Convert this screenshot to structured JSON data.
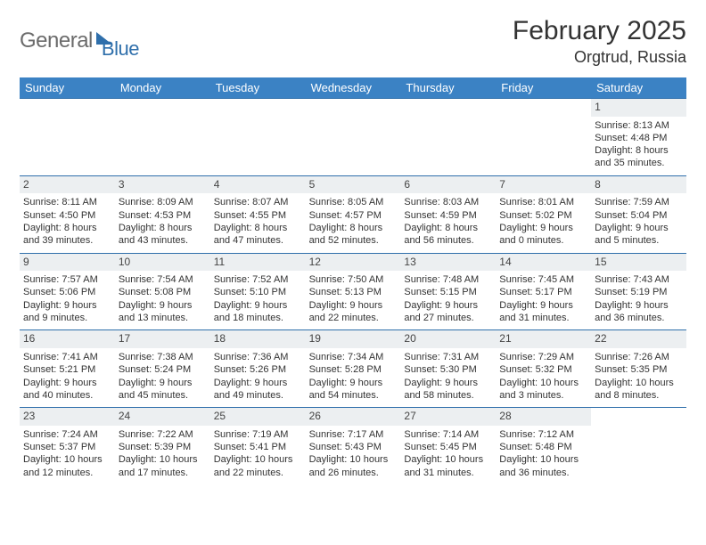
{
  "logo": {
    "general": "General",
    "blue": "Blue"
  },
  "title": "February 2025",
  "location": "Orgtrud, Russia",
  "weekdays": [
    "Sunday",
    "Monday",
    "Tuesday",
    "Wednesday",
    "Thursday",
    "Friday",
    "Saturday"
  ],
  "colors": {
    "header_bg": "#3b82c4",
    "header_text": "#ffffff",
    "daynum_bg": "#eceff1",
    "border": "#2f6fab",
    "logo_gray": "#6b6b6b",
    "logo_blue": "#2f6fab",
    "body_text": "#333333"
  },
  "fonts": {
    "title_size": 30,
    "location_size": 18,
    "weekday_size": 13,
    "cell_size": 11
  },
  "weeks": [
    [
      {
        "n": "",
        "sr": "",
        "ss": "",
        "dl": ""
      },
      {
        "n": "",
        "sr": "",
        "ss": "",
        "dl": ""
      },
      {
        "n": "",
        "sr": "",
        "ss": "",
        "dl": ""
      },
      {
        "n": "",
        "sr": "",
        "ss": "",
        "dl": ""
      },
      {
        "n": "",
        "sr": "",
        "ss": "",
        "dl": ""
      },
      {
        "n": "",
        "sr": "",
        "ss": "",
        "dl": ""
      },
      {
        "n": "1",
        "sr": "Sunrise: 8:13 AM",
        "ss": "Sunset: 4:48 PM",
        "dl": "Daylight: 8 hours and 35 minutes."
      }
    ],
    [
      {
        "n": "2",
        "sr": "Sunrise: 8:11 AM",
        "ss": "Sunset: 4:50 PM",
        "dl": "Daylight: 8 hours and 39 minutes."
      },
      {
        "n": "3",
        "sr": "Sunrise: 8:09 AM",
        "ss": "Sunset: 4:53 PM",
        "dl": "Daylight: 8 hours and 43 minutes."
      },
      {
        "n": "4",
        "sr": "Sunrise: 8:07 AM",
        "ss": "Sunset: 4:55 PM",
        "dl": "Daylight: 8 hours and 47 minutes."
      },
      {
        "n": "5",
        "sr": "Sunrise: 8:05 AM",
        "ss": "Sunset: 4:57 PM",
        "dl": "Daylight: 8 hours and 52 minutes."
      },
      {
        "n": "6",
        "sr": "Sunrise: 8:03 AM",
        "ss": "Sunset: 4:59 PM",
        "dl": "Daylight: 8 hours and 56 minutes."
      },
      {
        "n": "7",
        "sr": "Sunrise: 8:01 AM",
        "ss": "Sunset: 5:02 PM",
        "dl": "Daylight: 9 hours and 0 minutes."
      },
      {
        "n": "8",
        "sr": "Sunrise: 7:59 AM",
        "ss": "Sunset: 5:04 PM",
        "dl": "Daylight: 9 hours and 5 minutes."
      }
    ],
    [
      {
        "n": "9",
        "sr": "Sunrise: 7:57 AM",
        "ss": "Sunset: 5:06 PM",
        "dl": "Daylight: 9 hours and 9 minutes."
      },
      {
        "n": "10",
        "sr": "Sunrise: 7:54 AM",
        "ss": "Sunset: 5:08 PM",
        "dl": "Daylight: 9 hours and 13 minutes."
      },
      {
        "n": "11",
        "sr": "Sunrise: 7:52 AM",
        "ss": "Sunset: 5:10 PM",
        "dl": "Daylight: 9 hours and 18 minutes."
      },
      {
        "n": "12",
        "sr": "Sunrise: 7:50 AM",
        "ss": "Sunset: 5:13 PM",
        "dl": "Daylight: 9 hours and 22 minutes."
      },
      {
        "n": "13",
        "sr": "Sunrise: 7:48 AM",
        "ss": "Sunset: 5:15 PM",
        "dl": "Daylight: 9 hours and 27 minutes."
      },
      {
        "n": "14",
        "sr": "Sunrise: 7:45 AM",
        "ss": "Sunset: 5:17 PM",
        "dl": "Daylight: 9 hours and 31 minutes."
      },
      {
        "n": "15",
        "sr": "Sunrise: 7:43 AM",
        "ss": "Sunset: 5:19 PM",
        "dl": "Daylight: 9 hours and 36 minutes."
      }
    ],
    [
      {
        "n": "16",
        "sr": "Sunrise: 7:41 AM",
        "ss": "Sunset: 5:21 PM",
        "dl": "Daylight: 9 hours and 40 minutes."
      },
      {
        "n": "17",
        "sr": "Sunrise: 7:38 AM",
        "ss": "Sunset: 5:24 PM",
        "dl": "Daylight: 9 hours and 45 minutes."
      },
      {
        "n": "18",
        "sr": "Sunrise: 7:36 AM",
        "ss": "Sunset: 5:26 PM",
        "dl": "Daylight: 9 hours and 49 minutes."
      },
      {
        "n": "19",
        "sr": "Sunrise: 7:34 AM",
        "ss": "Sunset: 5:28 PM",
        "dl": "Daylight: 9 hours and 54 minutes."
      },
      {
        "n": "20",
        "sr": "Sunrise: 7:31 AM",
        "ss": "Sunset: 5:30 PM",
        "dl": "Daylight: 9 hours and 58 minutes."
      },
      {
        "n": "21",
        "sr": "Sunrise: 7:29 AM",
        "ss": "Sunset: 5:32 PM",
        "dl": "Daylight: 10 hours and 3 minutes."
      },
      {
        "n": "22",
        "sr": "Sunrise: 7:26 AM",
        "ss": "Sunset: 5:35 PM",
        "dl": "Daylight: 10 hours and 8 minutes."
      }
    ],
    [
      {
        "n": "23",
        "sr": "Sunrise: 7:24 AM",
        "ss": "Sunset: 5:37 PM",
        "dl": "Daylight: 10 hours and 12 minutes."
      },
      {
        "n": "24",
        "sr": "Sunrise: 7:22 AM",
        "ss": "Sunset: 5:39 PM",
        "dl": "Daylight: 10 hours and 17 minutes."
      },
      {
        "n": "25",
        "sr": "Sunrise: 7:19 AM",
        "ss": "Sunset: 5:41 PM",
        "dl": "Daylight: 10 hours and 22 minutes."
      },
      {
        "n": "26",
        "sr": "Sunrise: 7:17 AM",
        "ss": "Sunset: 5:43 PM",
        "dl": "Daylight: 10 hours and 26 minutes."
      },
      {
        "n": "27",
        "sr": "Sunrise: 7:14 AM",
        "ss": "Sunset: 5:45 PM",
        "dl": "Daylight: 10 hours and 31 minutes."
      },
      {
        "n": "28",
        "sr": "Sunrise: 7:12 AM",
        "ss": "Sunset: 5:48 PM",
        "dl": "Daylight: 10 hours and 36 minutes."
      },
      {
        "n": "",
        "sr": "",
        "ss": "",
        "dl": ""
      }
    ]
  ]
}
